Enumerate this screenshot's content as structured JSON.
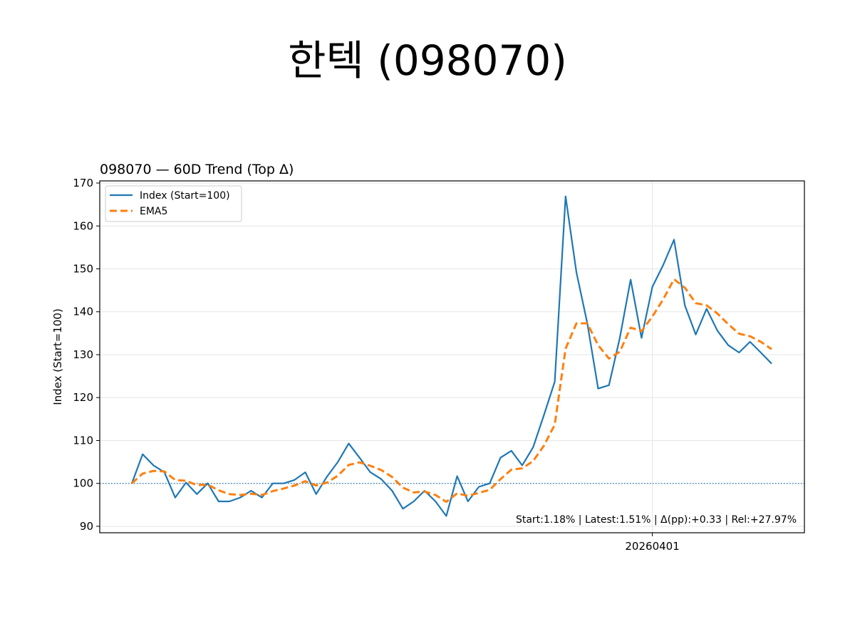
{
  "suptitle": "한텍 (098070)",
  "chart_data": {
    "type": "line",
    "title": "098070 — 60D Trend (Top Δ)",
    "xlabel": "",
    "ylabel": "Index (Start=100)",
    "ylim": [
      88.5,
      170.5
    ],
    "yticks": [
      90,
      100,
      110,
      120,
      130,
      140,
      150,
      160,
      170
    ],
    "xticks": [
      {
        "index": 48,
        "label": "20260401"
      }
    ],
    "x_count": 60,
    "grid": true,
    "baseline": 100,
    "legend_position": "top-left",
    "series": [
      {
        "name": "Index (Start=100)",
        "color": "#1f77b4",
        "style": "solid",
        "values": [
          100.0,
          106.8,
          104.2,
          102.6,
          96.7,
          100.2,
          97.5,
          100.0,
          95.8,
          95.8,
          96.7,
          98.3,
          96.7,
          100.0,
          100.0,
          100.8,
          102.6,
          97.5,
          101.6,
          105.0,
          109.3,
          106.0,
          102.6,
          101.0,
          98.3,
          94.1,
          95.8,
          98.3,
          95.8,
          92.4,
          101.7,
          95.8,
          99.2,
          100.0,
          106.0,
          107.6,
          104.2,
          108.4,
          115.9,
          123.7,
          166.9,
          149.2,
          137.3,
          122.1,
          122.9,
          133.9,
          147.5,
          133.9,
          145.8,
          150.9,
          156.8,
          141.5,
          134.7,
          140.7,
          135.6,
          132.2,
          130.5,
          133.0,
          130.5,
          127.9
        ]
      },
      {
        "name": "EMA5",
        "color": "#ff7f0e",
        "style": "dashed",
        "values": [
          100.0,
          102.3,
          102.9,
          102.8,
          100.8,
          100.6,
          99.6,
          99.7,
          98.4,
          97.5,
          97.3,
          97.6,
          97.3,
          98.2,
          98.8,
          99.5,
          100.5,
          99.5,
          100.2,
          101.8,
          104.3,
          104.9,
          104.1,
          103.1,
          101.5,
          99.0,
          97.9,
          98.1,
          97.3,
          95.7,
          97.7,
          97.1,
          97.8,
          98.5,
          101.0,
          103.2,
          103.5,
          105.2,
          108.8,
          113.7,
          131.4,
          137.3,
          137.3,
          132.2,
          129.1,
          130.7,
          136.3,
          135.5,
          138.9,
          142.9,
          147.6,
          145.6,
          142.0,
          141.5,
          139.6,
          137.1,
          134.9,
          134.3,
          133.0,
          131.3
        ]
      }
    ],
    "annotation": "Start:1.18% | Latest:1.51% | Δ(pp):+0.33 | Rel:+27.97%"
  }
}
